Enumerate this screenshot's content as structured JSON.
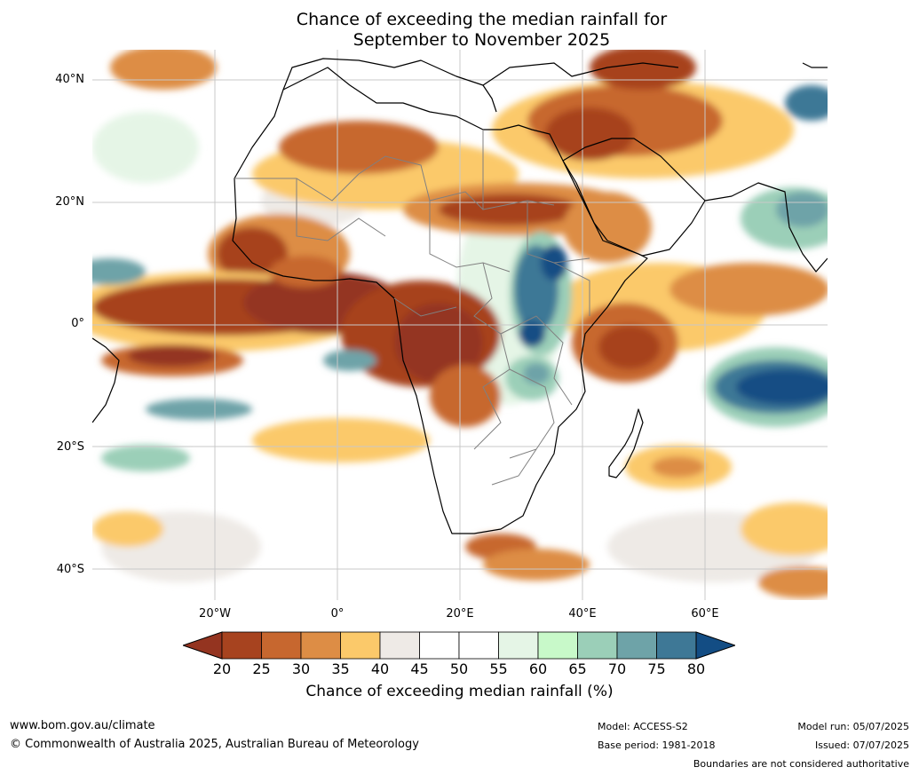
{
  "title": {
    "line1": "Chance of exceeding the median rainfall for",
    "line2": "September to November 2025"
  },
  "map": {
    "lat_labels": [
      "40°N",
      "20°N",
      "0°",
      "20°S",
      "40°S"
    ],
    "lon_labels": [
      "20°W",
      "0°",
      "20°E",
      "40°E",
      "60°E"
    ],
    "extent": {
      "lon_min": -39,
      "lon_max": 81,
      "lat_min": -45,
      "lat_max": 45
    }
  },
  "colorbar": {
    "ticks": [
      "20",
      "25",
      "30",
      "35",
      "40",
      "45",
      "50",
      "55",
      "60",
      "65",
      "70",
      "75",
      "80"
    ],
    "colors": [
      "#943420",
      "#a7431f",
      "#c7672f",
      "#dd8d45",
      "#fbc96a",
      "#eeeae6",
      "#ffffff",
      "#ffffff",
      "#e5f5e6",
      "#c8f9c9",
      "#9bcfb8",
      "#6ea3a8",
      "#3e7896",
      "#134d84"
    ],
    "label": "Chance of exceeding median rainfall (%)"
  },
  "footer": {
    "url": "www.bom.gov.au/climate",
    "copyright": "© Commonwealth of Australia 2025, Australian Bureau of Meteorology",
    "model": "Model: ACCESS-S2",
    "base_period": "Base period: 1981-2018",
    "model_run": "Model run: 05/07/2025",
    "issued": "Issued: 07/07/2025",
    "disclaimer": "Boundaries are not considered authoritative"
  }
}
